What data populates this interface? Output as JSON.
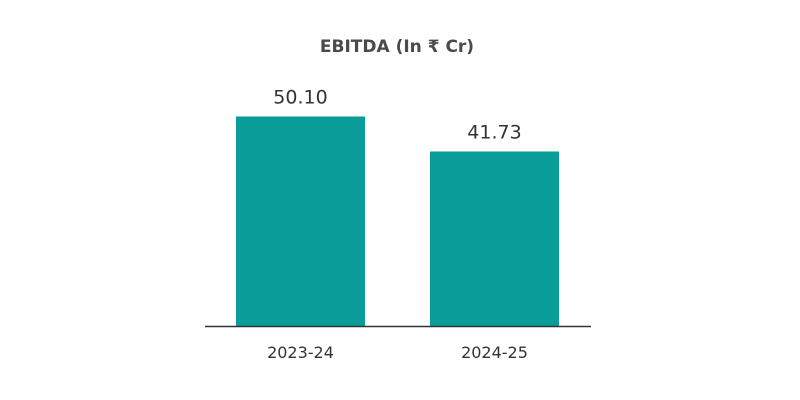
{
  "chart_data": {
    "type": "bar",
    "title": "EBITDA (In ₹ Cr)",
    "categories": [
      "2023-24",
      "2024-25"
    ],
    "values": [
      50.1,
      41.73
    ],
    "value_labels": [
      "50.10",
      "41.73"
    ],
    "xlabel": "",
    "ylabel": "",
    "ylim": [
      0,
      55
    ],
    "grid": false,
    "legend": "none",
    "bar_color": "#0a9c98",
    "axis_color": "#333333"
  }
}
